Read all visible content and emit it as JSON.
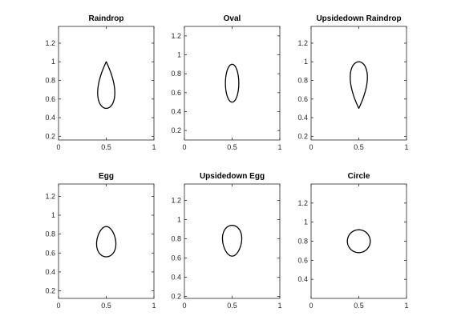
{
  "chart_data": [
    {
      "type": "line",
      "title": "Raindrop",
      "xlim": [
        0,
        1
      ],
      "ylim": [
        0.16,
        1.38
      ],
      "xticks": [
        0,
        0.5,
        1
      ],
      "xtick_labels": [
        "0",
        "0.5",
        "1"
      ],
      "yticks": [
        0.2,
        0.4,
        0.6,
        0.8,
        1,
        1.2
      ],
      "ytick_labels": [
        "0.2",
        "0.4",
        "0.6",
        "0.8",
        "1",
        "1.2"
      ],
      "grid": false,
      "series": [
        {
          "shape": "raindrop",
          "center_x": 0.5,
          "y_bottom": 0.5,
          "y_top": 1.0,
          "half_width": 0.09
        }
      ]
    },
    {
      "type": "line",
      "title": "Oval",
      "xlim": [
        0,
        1
      ],
      "ylim": [
        0.1,
        1.3
      ],
      "xticks": [
        0,
        0.5,
        1
      ],
      "xtick_labels": [
        "0",
        "0.5",
        "1"
      ],
      "yticks": [
        0.2,
        0.4,
        0.6,
        0.8,
        1,
        1.2
      ],
      "ytick_labels": [
        "0.2",
        "0.4",
        "0.6",
        "0.8",
        "1",
        "1.2"
      ],
      "grid": false,
      "series": [
        {
          "shape": "oval",
          "center_x": 0.5,
          "y_bottom": 0.5,
          "y_top": 0.9,
          "half_width": 0.07
        }
      ]
    },
    {
      "type": "line",
      "title": "Upsidedown Raindrop",
      "xlim": [
        0,
        1
      ],
      "ylim": [
        0.16,
        1.38
      ],
      "xticks": [
        0,
        0.5,
        1
      ],
      "xtick_labels": [
        "0",
        "0.5",
        "1"
      ],
      "yticks": [
        0.2,
        0.4,
        0.6,
        0.8,
        1,
        1.2
      ],
      "ytick_labels": [
        "0.2",
        "0.4",
        "0.6",
        "0.8",
        "1",
        "1.2"
      ],
      "grid": false,
      "series": [
        {
          "shape": "upsidedown-raindrop",
          "center_x": 0.5,
          "y_bottom": 0.5,
          "y_top": 1.0,
          "half_width": 0.09
        }
      ]
    },
    {
      "type": "line",
      "title": "Egg",
      "xlim": [
        0,
        1
      ],
      "ylim": [
        0.12,
        1.33
      ],
      "xticks": [
        0,
        0.5,
        1
      ],
      "xtick_labels": [
        "0",
        "0.5",
        "1"
      ],
      "yticks": [
        0.2,
        0.4,
        0.6,
        0.8,
        1,
        1.2
      ],
      "ytick_labels": [
        "0.2",
        "0.4",
        "0.6",
        "0.8",
        "1",
        "1.2"
      ],
      "grid": false,
      "series": [
        {
          "shape": "egg",
          "center_x": 0.5,
          "y_bottom": 0.56,
          "y_top": 0.88,
          "half_width": 0.1
        }
      ]
    },
    {
      "type": "line",
      "title": "Upsidedown Egg",
      "xlim": [
        0,
        1
      ],
      "ylim": [
        0.18,
        1.37
      ],
      "xticks": [
        0,
        0.5,
        1
      ],
      "xtick_labels": [
        "0",
        "0.5",
        "1"
      ],
      "yticks": [
        0.2,
        0.4,
        0.6,
        0.8,
        1,
        1.2
      ],
      "ytick_labels": [
        "0.2",
        "0.4",
        "0.6",
        "0.8",
        "1",
        "1.2"
      ],
      "grid": false,
      "series": [
        {
          "shape": "upsidedown-egg",
          "center_x": 0.5,
          "y_bottom": 0.62,
          "y_top": 0.94,
          "half_width": 0.1
        }
      ]
    },
    {
      "type": "line",
      "title": "Circle",
      "xlim": [
        0,
        1
      ],
      "ylim": [
        0.2,
        1.4
      ],
      "xticks": [
        0,
        0.5,
        1
      ],
      "xtick_labels": [
        "0",
        "0.5",
        "1"
      ],
      "yticks": [
        0.4,
        0.6,
        0.8,
        1,
        1.2
      ],
      "ytick_labels": [
        "0.4",
        "0.6",
        "0.8",
        "1",
        "1.2"
      ],
      "grid": false,
      "series": [
        {
          "shape": "circle",
          "center_x": 0.5,
          "center_y": 0.8,
          "radius": 0.12
        }
      ]
    }
  ]
}
